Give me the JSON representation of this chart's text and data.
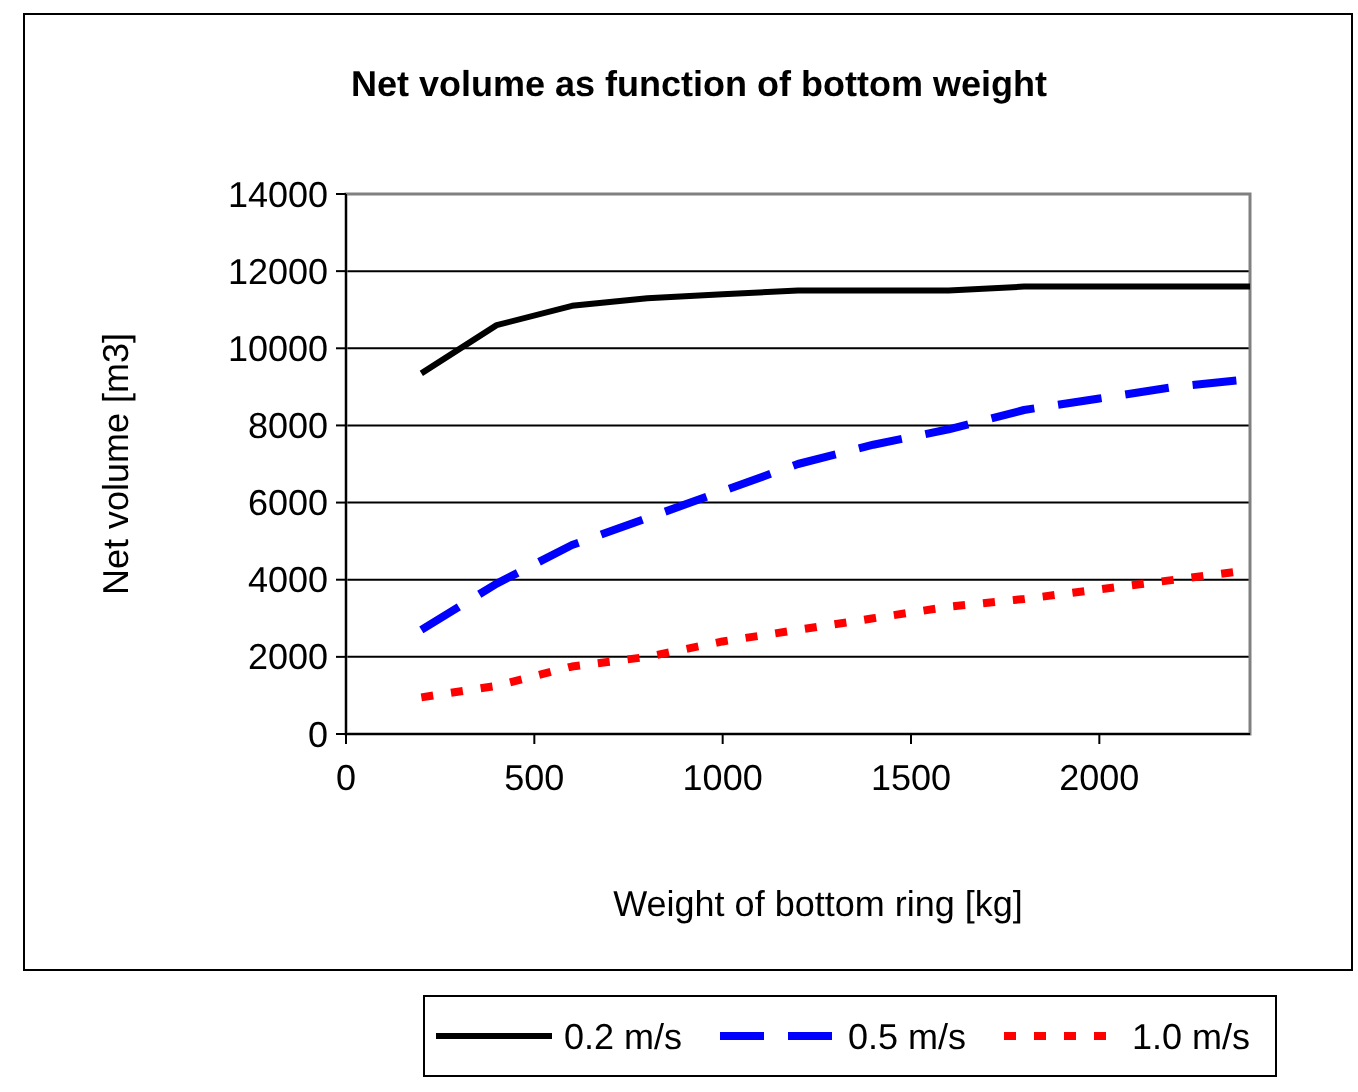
{
  "chart_data": {
    "type": "line",
    "title": "Net volume as function of bottom weight",
    "xlabel": "Weight of bottom ring [kg]",
    "ylabel": "Net volume [m3]",
    "x": [
      200,
      400,
      600,
      800,
      1000,
      1200,
      1400,
      1600,
      1800,
      2000,
      2200,
      2400
    ],
    "series": [
      {
        "name": "0.2 m/s",
        "color": "#000000",
        "line_style": "solid",
        "values": [
          9350,
          10600,
          11100,
          11300,
          11400,
          11500,
          11500,
          11500,
          11600,
          11600,
          11600,
          11600
        ]
      },
      {
        "name": "0.5 m/s",
        "color": "#0000ff",
        "line_style": "dashed",
        "values": [
          2700,
          3900,
          4900,
          5600,
          6300,
          7000,
          7500,
          7900,
          8400,
          8700,
          9000,
          9200
        ]
      },
      {
        "name": "1.0 m/s",
        "color": "#ff0000",
        "line_style": "dotted",
        "values": [
          950,
          1250,
          1750,
          2000,
          2400,
          2700,
          3000,
          3300,
          3500,
          3750,
          4000,
          4250
        ]
      }
    ],
    "xlim": [
      0,
      2400
    ],
    "xticks": [
      0,
      500,
      1000,
      1500,
      2000
    ],
    "ylim": [
      0,
      14000
    ],
    "yticks": [
      0,
      2000,
      4000,
      6000,
      8000,
      10000,
      12000,
      14000
    ],
    "grid": "y",
    "legend": "bottom",
    "marker": "none"
  }
}
